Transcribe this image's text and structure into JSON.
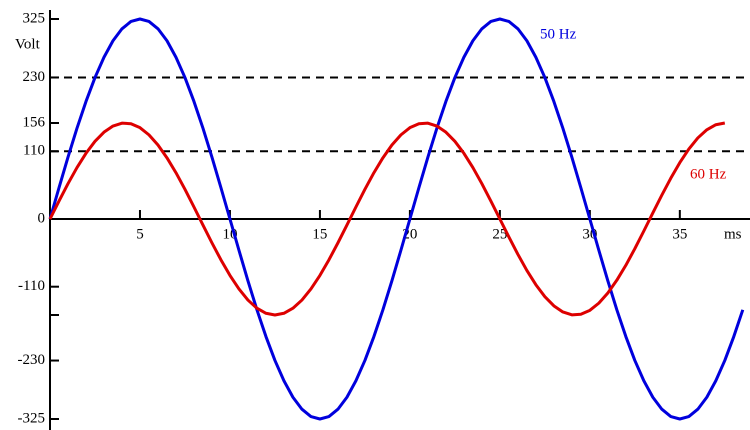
{
  "chart_data": {
    "type": "line",
    "xlabel": "ms",
    "ylabel": "Volt",
    "xlim": [
      0,
      38.9
    ],
    "ylim": [
      -325,
      325
    ],
    "xticks": [
      5,
      10,
      15,
      20,
      25,
      30,
      35
    ],
    "yticks": [
      325,
      230,
      156,
      110,
      0,
      -110,
      {
        "value": -156,
        "label": null
      },
      -230,
      -325
    ],
    "reference_lines": [
      230,
      110
    ],
    "series": [
      {
        "name": "50 Hz",
        "color": "#0000dd",
        "x": [
          0,
          0.5,
          1,
          1.5,
          2,
          2.5,
          3,
          3.5,
          4,
          4.5,
          5,
          5.5,
          6,
          6.5,
          7,
          7.5,
          8,
          8.5,
          9,
          9.5,
          10,
          10.5,
          11,
          11.5,
          12,
          12.5,
          13,
          13.5,
          14,
          14.5,
          15,
          15.5,
          16,
          16.5,
          17,
          17.5,
          18,
          18.5,
          19,
          19.5,
          20,
          20.5,
          21,
          21.5,
          22,
          22.5,
          23,
          23.5,
          24,
          24.5,
          25,
          25.5,
          26,
          26.5,
          27,
          27.5,
          28,
          28.5,
          29,
          29.5,
          30,
          30.5,
          31,
          31.5,
          32,
          32.5,
          33,
          33.5,
          34,
          34.5,
          35,
          35.5,
          36,
          36.5,
          37,
          37.5,
          38,
          38.5
        ],
        "values": [
          0,
          50.8,
          100.4,
          147.6,
          191,
          229.8,
          262.9,
          289.6,
          309.1,
          321,
          325,
          321,
          309.1,
          289.6,
          262.9,
          229.8,
          191,
          147.6,
          100.4,
          50.8,
          0,
          -50.8,
          -100.4,
          -147.6,
          -191,
          -229.8,
          -262.9,
          -289.6,
          -309.1,
          -321,
          -325,
          -321,
          -309.1,
          -289.6,
          -262.9,
          -229.8,
          -191,
          -147.6,
          -100.4,
          -50.8,
          0,
          50.8,
          100.4,
          147.6,
          191,
          229.8,
          262.9,
          289.6,
          309.1,
          321,
          325,
          321,
          309.1,
          289.6,
          262.9,
          229.8,
          191,
          147.6,
          100.4,
          50.8,
          0,
          -50.8,
          -100.4,
          -147.6,
          -191,
          -229.8,
          -262.9,
          -289.6,
          -309.1,
          -321,
          -325,
          -321,
          -309.1,
          -289.6,
          -262.9,
          -229.8,
          -191,
          -147.6
        ]
      },
      {
        "name": "60 Hz",
        "color": "#dd0000",
        "x": [
          0,
          0.5,
          1,
          1.5,
          2,
          2.5,
          3,
          3.5,
          4,
          4.5,
          5,
          5.5,
          6,
          6.5,
          7,
          7.5,
          8,
          8.5,
          9,
          9.5,
          10,
          10.5,
          11,
          11.5,
          12,
          12.5,
          13,
          13.5,
          14,
          14.5,
          15,
          15.5,
          16,
          16.5,
          17,
          17.5,
          18,
          18.5,
          19,
          19.5,
          20,
          20.5,
          21,
          21.5,
          22,
          22.5,
          23,
          23.5,
          24,
          24.5,
          25,
          25.5,
          26,
          26.5,
          27,
          27.5,
          28,
          28.5,
          29,
          29.5,
          30,
          30.5,
          31,
          31.5,
          32,
          32.5,
          33,
          33.5,
          34,
          34.5,
          35,
          35.5,
          36,
          36.5,
          37,
          37.5
        ],
        "values": [
          0,
          29.2,
          57.4,
          83.6,
          106.8,
          126.2,
          141.1,
          151.1,
          155.7,
          154.8,
          148.4,
          136.7,
          120.2,
          99.4,
          75.2,
          48.2,
          19.5,
          -9.8,
          -38.8,
          -66.4,
          -91.7,
          -113.7,
          -131.7,
          -145,
          -153.2,
          -156,
          -153.2,
          -145,
          -131.7,
          -113.7,
          -91.7,
          -66.4,
          -38.8,
          -9.8,
          19.5,
          48.2,
          75.2,
          99.4,
          120.2,
          136.7,
          148.4,
          154.8,
          155.7,
          151.1,
          141.1,
          126.2,
          106.8,
          83.6,
          57.4,
          29.2,
          0,
          -29.2,
          -57.4,
          -83.6,
          -106.8,
          -126.2,
          -141.1,
          -151.1,
          -155.7,
          -154.8,
          -148.4,
          -136.7,
          -120.2,
          -99.4,
          -75.2,
          -48.2,
          -19.5,
          9.8,
          38.8,
          66.4,
          91.7,
          113.7,
          131.7,
          145,
          153.2,
          156
        ]
      }
    ]
  }
}
